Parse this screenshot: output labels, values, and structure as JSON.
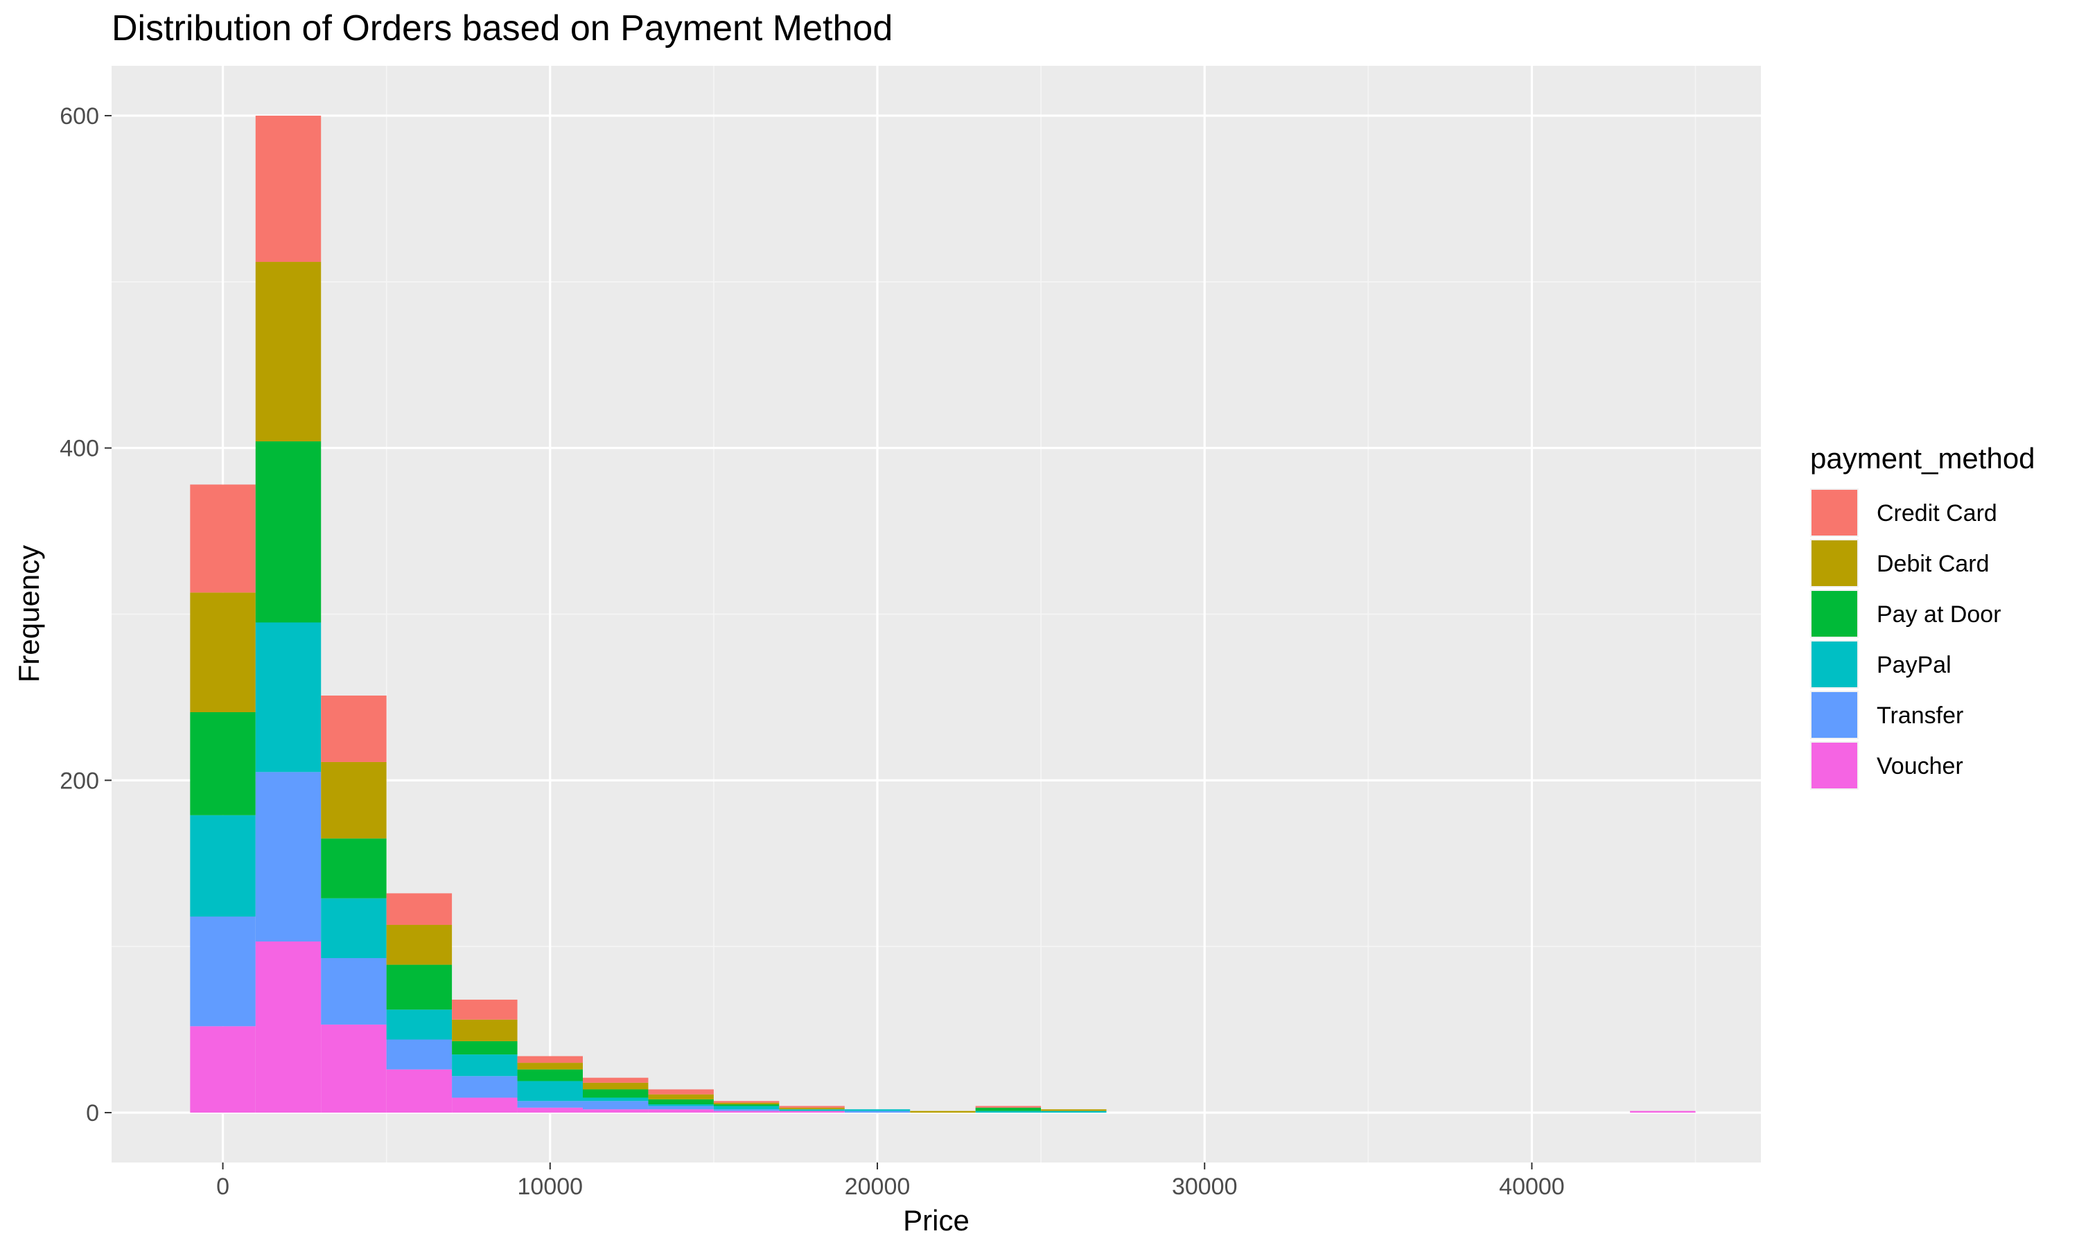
{
  "chart_data": {
    "type": "bar",
    "title": "Distribution of Orders based on Payment Method",
    "xlabel": "Price",
    "ylabel": "Frequency",
    "xlim": [
      -3400,
      47000
    ],
    "ylim": [
      -30,
      630
    ],
    "x_ticks": [
      0,
      10000,
      20000,
      30000,
      40000
    ],
    "y_ticks": [
      0,
      200,
      400,
      600
    ],
    "grid": true,
    "stacked": true,
    "bin_width": 2000,
    "legend_position": "right",
    "legend_title": "payment_method",
    "bin_centers": [
      0,
      2000,
      4000,
      6000,
      8000,
      10000,
      12000,
      14000,
      16000,
      18000,
      20000,
      22000,
      24000,
      26000,
      28000,
      30000,
      32000,
      34000,
      36000,
      38000,
      40000,
      42000,
      44000
    ],
    "series": [
      {
        "name": "Voucher",
        "color": "#F564E3",
        "values": [
          52,
          103,
          53,
          26,
          9,
          3,
          2,
          2,
          1,
          1,
          0,
          0,
          0,
          0,
          0,
          0,
          0,
          0,
          0,
          0,
          0,
          0,
          1
        ]
      },
      {
        "name": "Transfer",
        "color": "#619CFF",
        "values": [
          66,
          102,
          40,
          18,
          13,
          4,
          5,
          2,
          1,
          0,
          1,
          0,
          0,
          0,
          0,
          0,
          0,
          0,
          0,
          0,
          0,
          0,
          0
        ]
      },
      {
        "name": "PayPal",
        "color": "#00BFC4",
        "values": [
          61,
          90,
          36,
          18,
          13,
          12,
          2,
          1,
          2,
          1,
          1,
          0,
          1,
          1,
          0,
          0,
          0,
          0,
          0,
          0,
          0,
          0,
          0
        ]
      },
      {
        "name": "Pay at Door",
        "color": "#00BA38",
        "values": [
          62,
          109,
          36,
          27,
          8,
          7,
          5,
          3,
          1,
          0,
          0,
          0,
          2,
          0,
          0,
          0,
          0,
          0,
          0,
          0,
          0,
          0,
          0
        ]
      },
      {
        "name": "Debit Card",
        "color": "#B79F00",
        "values": [
          72,
          108,
          46,
          24,
          13,
          4,
          4,
          3,
          1,
          1,
          0,
          1,
          0,
          1,
          0,
          0,
          0,
          0,
          0,
          0,
          0,
          0,
          0
        ]
      },
      {
        "name": "Credit Card",
        "color": "#F8766D",
        "values": [
          65,
          88,
          40,
          19,
          12,
          4,
          3,
          3,
          1,
          1,
          0,
          0,
          1,
          0,
          0,
          0,
          0,
          0,
          0,
          0,
          0,
          0,
          0
        ]
      }
    ],
    "legend_order": [
      "Credit Card",
      "Debit Card",
      "Pay at Door",
      "PayPal",
      "Transfer",
      "Voucher"
    ]
  },
  "colors": {
    "panel_background": "#EBEBEB",
    "grid_major": "#FFFFFF",
    "grid_minor": "#F5F5F5",
    "tick_text": "#4D4D4D"
  }
}
